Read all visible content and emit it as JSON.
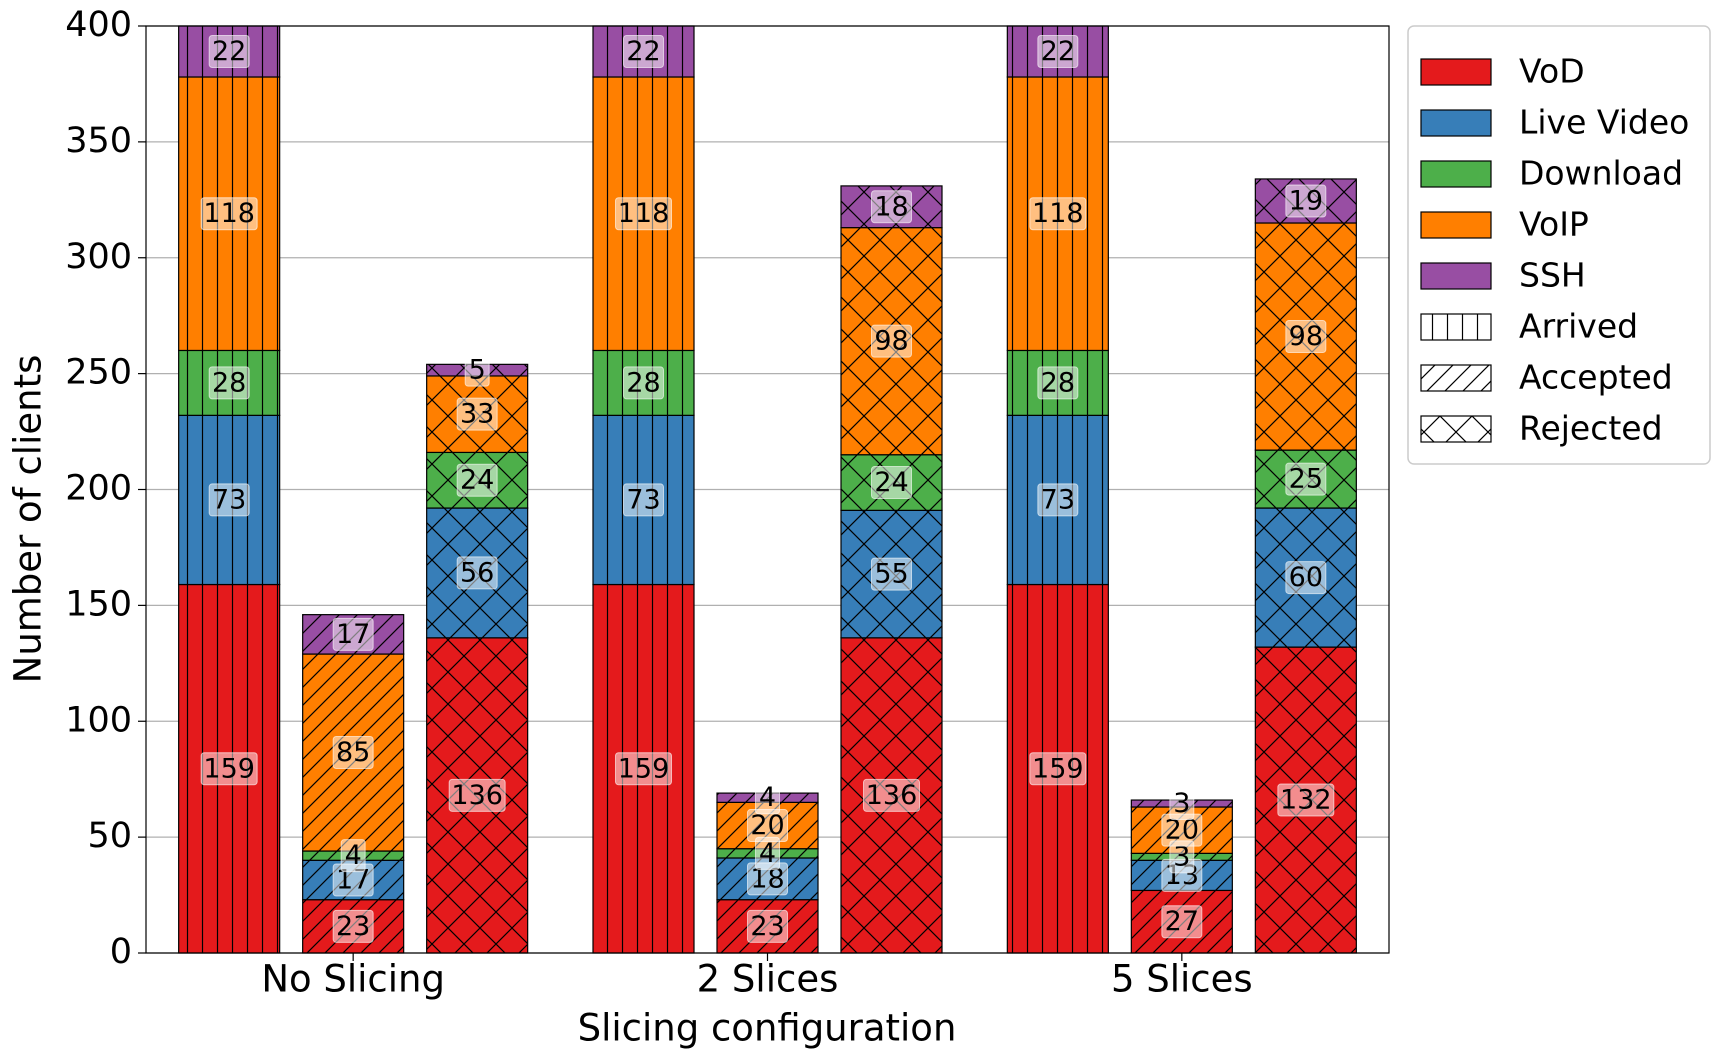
{
  "chart_data": {
    "type": "stacked-grouped-bar",
    "x_label": "Slicing configuration",
    "y_label": "Number of clients",
    "categories": [
      "No Slicing",
      "2 Slices",
      "5 Slices"
    ],
    "statuses": [
      {
        "name": "Arrived",
        "hatch": "|"
      },
      {
        "name": "Accepted",
        "hatch": "/"
      },
      {
        "name": "Rejected",
        "hatch": "x"
      }
    ],
    "series": [
      {
        "name": "VoD",
        "color": "#e41a1c",
        "values": [
          [
            159,
            23,
            136
          ],
          [
            159,
            23,
            136
          ],
          [
            159,
            27,
            132
          ]
        ]
      },
      {
        "name": "Live Video",
        "color": "#377eb8",
        "values": [
          [
            73,
            17,
            56
          ],
          [
            73,
            18,
            55
          ],
          [
            73,
            13,
            60
          ]
        ]
      },
      {
        "name": "Download",
        "color": "#4daf4a",
        "values": [
          [
            28,
            4,
            24
          ],
          [
            28,
            4,
            24
          ],
          [
            28,
            3,
            25
          ]
        ]
      },
      {
        "name": "VoIP",
        "color": "#ff7f00",
        "values": [
          [
            118,
            85,
            33
          ],
          [
            118,
            20,
            98
          ],
          [
            118,
            20,
            98
          ]
        ]
      },
      {
        "name": "SSH",
        "color": "#984ea3",
        "values": [
          [
            22,
            17,
            5
          ],
          [
            22,
            4,
            18
          ],
          [
            22,
            3,
            19
          ]
        ]
      }
    ],
    "ylim": [
      0,
      400
    ],
    "yticks": [
      0,
      50,
      100,
      150,
      200,
      250,
      300,
      350,
      400
    ],
    "grid": true,
    "legend": "outside-right"
  }
}
